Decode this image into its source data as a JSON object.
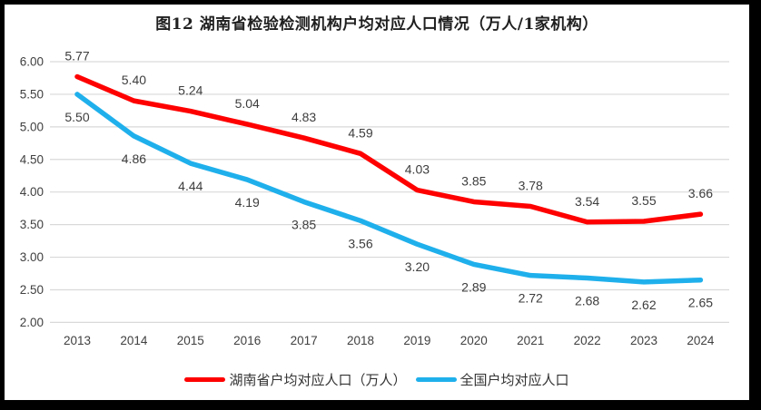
{
  "chart_data": {
    "type": "line",
    "title": "图12 湖南省检验检测机构户均对应人口情况（万人/1家机构）",
    "categories": [
      "2013",
      "2014",
      "2015",
      "2016",
      "2017",
      "2018",
      "2019",
      "2020",
      "2021",
      "2022",
      "2023",
      "2024"
    ],
    "series": [
      {
        "name": "湖南省户均对应人口（万人）",
        "color": "#FE0000",
        "values": [
          5.77,
          5.4,
          5.24,
          5.04,
          4.83,
          4.59,
          4.03,
          3.85,
          3.78,
          3.54,
          3.55,
          3.66
        ],
        "label_position": "above"
      },
      {
        "name": "全国户均对应人口",
        "color": "#1FB0EC",
        "values": [
          5.5,
          4.86,
          4.44,
          4.19,
          3.85,
          3.56,
          3.2,
          2.89,
          2.72,
          2.68,
          2.62,
          2.65
        ],
        "label_position": "below"
      }
    ],
    "xlabel": "",
    "ylabel": "",
    "ylim": [
      2.0,
      6.0
    ],
    "yticks": [
      "6.00",
      "5.50",
      "5.00",
      "4.50",
      "4.00",
      "3.50",
      "3.00",
      "2.50",
      "2.00"
    ],
    "grid": true,
    "data_labels": true,
    "legend_position": "bottom",
    "colors": {
      "gridline": "#D9D9D9",
      "axis_text": "#404040",
      "data_label_text": "#3D3D3D",
      "title_text": "#1F1F1F",
      "background": "#FFFFFF",
      "frame_border": "#000000"
    }
  }
}
